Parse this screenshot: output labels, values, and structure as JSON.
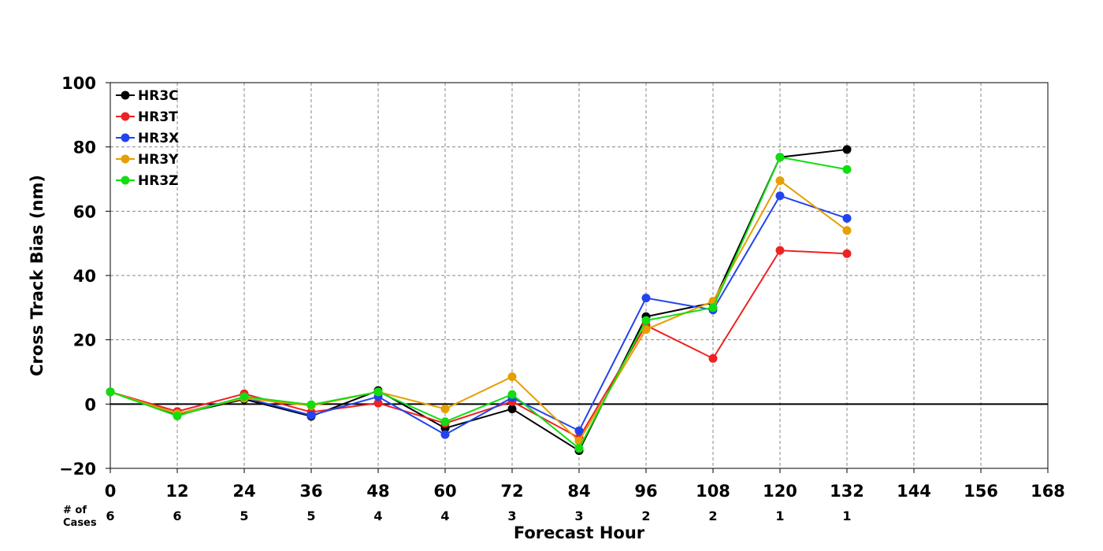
{
  "chart_data": {
    "type": "line",
    "xlabel": "Forecast Hour",
    "ylabel": "Cross Track Bias (nm)",
    "x_ticks": [
      0,
      12,
      24,
      36,
      48,
      60,
      72,
      84,
      96,
      108,
      120,
      132,
      144,
      156,
      168
    ],
    "y_ticks": [
      -20,
      0,
      20,
      40,
      60,
      80,
      100
    ],
    "xlim": [
      0,
      168
    ],
    "ylim": [
      -20,
      100
    ],
    "grid": true,
    "grid_style": "dashed",
    "zero_line": true,
    "legend_position": "top-left",
    "cases_title": [
      "# of",
      "Cases"
    ],
    "cases": [
      6,
      6,
      5,
      5,
      4,
      4,
      3,
      3,
      2,
      2,
      1,
      1
    ],
    "x": [
      0,
      12,
      24,
      36,
      48,
      60,
      72,
      84,
      96,
      108,
      120,
      132
    ],
    "series": [
      {
        "name": "HR3C",
        "color": "#000000",
        "values": [
          3.8,
          -3.3,
          1.5,
          -3.8,
          4.2,
          -7.5,
          -1.5,
          -14.5,
          27.2,
          31.5,
          76.8,
          79.2
        ]
      },
      {
        "name": "HR3T",
        "color": "#ee2222",
        "values": [
          3.8,
          -2.3,
          3.2,
          -2.5,
          0.3,
          -6.0,
          0.8,
          -10.5,
          24.5,
          14.2,
          47.8,
          46.8
        ]
      },
      {
        "name": "HR3X",
        "color": "#2244ee",
        "values": [
          3.8,
          -3.0,
          2.0,
          -3.5,
          2.3,
          -9.5,
          2.0,
          -8.3,
          33.0,
          29.3,
          64.8,
          57.8
        ]
      },
      {
        "name": "HR3Y",
        "color": "#e69f00",
        "values": [
          3.8,
          -3.0,
          1.8,
          -0.5,
          3.8,
          -1.5,
          8.5,
          -11.5,
          23.2,
          32.0,
          69.5,
          54.0
        ]
      },
      {
        "name": "HR3Z",
        "color": "#11dd11",
        "values": [
          3.8,
          -3.7,
          2.3,
          -0.2,
          3.8,
          -5.5,
          3.0,
          -13.8,
          26.0,
          30.0,
          76.8,
          73.0
        ]
      }
    ]
  }
}
